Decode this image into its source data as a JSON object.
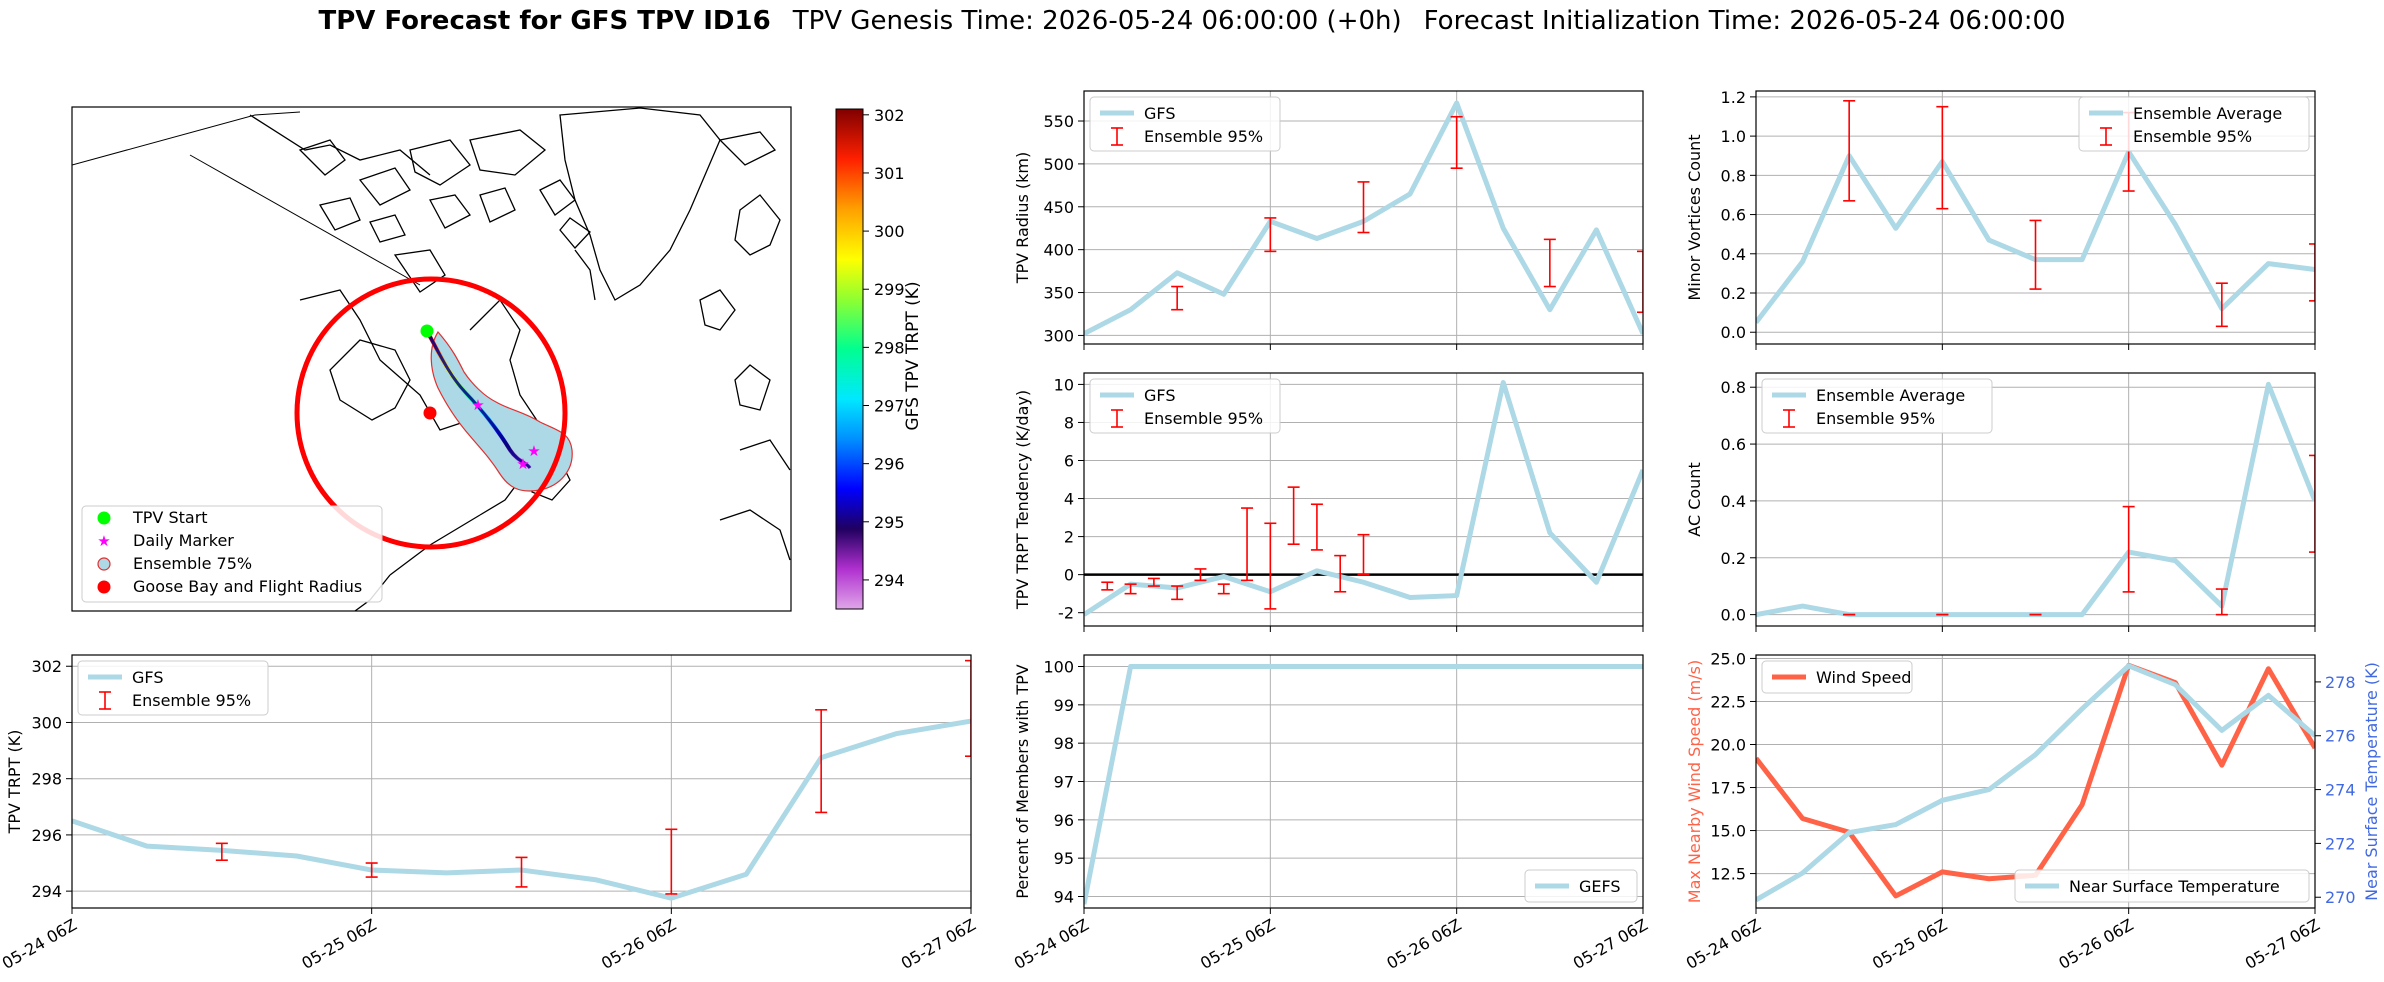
{
  "header": {
    "title_bold": "TPV Forecast for GFS TPV ID16",
    "genesis": "TPV Genesis Time: 2026-05-24 06:00:00 (+0h)",
    "init": "Forecast Initialization Time: 2026-05-24 06:00:00"
  },
  "colors": {
    "line": "#add8e6",
    "errorbar": "#ff0000",
    "wind": "#ff6347",
    "temp_axis": "#4169e1",
    "grid": "#b0b0b0"
  },
  "time_ticks": [
    "05-24 06Z",
    "05-25 06Z",
    "05-26 06Z",
    "05-27 06Z"
  ],
  "map": {
    "legend": [
      "TPV Start",
      "Daily Marker",
      "Ensemble 75%",
      "Goose Bay and Flight Radius"
    ],
    "colorbar": {
      "label": "GFS TPV TRPT (K)",
      "range": [
        293.5,
        302.1
      ],
      "ticks": [
        "294",
        "295",
        "296",
        "297",
        "298",
        "299",
        "300",
        "301",
        "302"
      ],
      "colormap": "gist_ncar_r"
    },
    "track_color": "#00008b",
    "start_color": "#00ff00",
    "goose_bay_color": "#ff0000",
    "daily_marker_color": "#ff00ff"
  },
  "chart_data": [
    {
      "id": "trpt",
      "type": "line",
      "x": [
        0,
        6,
        12,
        18,
        24,
        30,
        36,
        42,
        48,
        54,
        60,
        66,
        72
      ],
      "series": [
        {
          "name": "GFS",
          "values": [
            296.5,
            295.6,
            295.45,
            295.25,
            294.75,
            294.65,
            294.75,
            294.4,
            293.75,
            294.6,
            298.75,
            299.6,
            300.05
          ]
        }
      ],
      "errorbars": {
        "name": "Ensemble 95%",
        "x": [
          12,
          24,
          36,
          48,
          60,
          72
        ],
        "low": [
          295.1,
          294.5,
          294.15,
          293.9,
          296.8,
          298.8
        ],
        "high": [
          295.7,
          295.0,
          295.2,
          296.2,
          300.45,
          302.2
        ]
      },
      "ylabel": "TPV TRPT (K)",
      "ylim": [
        293.4,
        302.4
      ],
      "yticks": [
        294,
        296,
        298,
        300,
        302
      ],
      "legend": "upper left",
      "grid": true
    },
    {
      "id": "radius",
      "type": "line",
      "x": [
        0,
        6,
        12,
        18,
        24,
        30,
        36,
        42,
        48,
        54,
        60,
        66,
        72
      ],
      "series": [
        {
          "name": "GFS",
          "values": [
            302,
            330,
            373,
            348,
            433,
            413,
            433,
            465,
            571,
            425,
            330,
            423,
            302
          ]
        }
      ],
      "errorbars": {
        "name": "Ensemble 95%",
        "x": [
          12,
          24,
          36,
          48,
          60,
          72
        ],
        "low": [
          330,
          398,
          420,
          495,
          357,
          327
        ],
        "high": [
          357,
          437,
          479,
          555,
          412,
          398
        ]
      },
      "ylabel": "TPV Radius (km)",
      "ylim": [
        290,
        585
      ],
      "yticks": [
        300,
        350,
        400,
        450,
        500,
        550
      ],
      "legend": "upper left",
      "grid": true
    },
    {
      "id": "minor",
      "type": "line",
      "x": [
        0,
        6,
        12,
        18,
        24,
        30,
        36,
        42,
        48,
        54,
        60,
        66,
        72
      ],
      "series": [
        {
          "name": "Ensemble Average",
          "values": [
            0.05,
            0.36,
            0.9,
            0.53,
            0.87,
            0.47,
            0.37,
            0.37,
            0.92,
            0.55,
            0.12,
            0.35,
            0.32
          ]
        }
      ],
      "errorbars": {
        "name": "Ensemble 95%",
        "x": [
          12,
          24,
          36,
          48,
          60,
          72
        ],
        "low": [
          0.67,
          0.63,
          0.22,
          0.72,
          0.03,
          0.16
        ],
        "high": [
          1.18,
          1.15,
          0.57,
          1.12,
          0.25,
          0.45
        ]
      },
      "ylabel": "Minor Vortices Count",
      "ylim": [
        -0.06,
        1.23
      ],
      "yticks": [
        0.0,
        0.2,
        0.4,
        0.6,
        0.8,
        1.0,
        1.2
      ],
      "legend": "upper right",
      "grid": true
    },
    {
      "id": "tendency",
      "type": "line",
      "x": [
        0,
        6,
        12,
        18,
        24,
        30,
        36,
        42,
        48,
        54,
        60,
        66,
        72
      ],
      "series": [
        {
          "name": "GFS",
          "values": [
            -2.1,
            -0.5,
            -0.7,
            -0.1,
            -0.9,
            0.2,
            -0.4,
            -1.2,
            -1.1,
            10.1,
            2.2,
            -0.4,
            5.5
          ]
        }
      ],
      "errorbars": {
        "name": "Ensemble 95%",
        "x": [
          3,
          6,
          9,
          12,
          15,
          18,
          21,
          24,
          27,
          30,
          33,
          36
        ],
        "low": [
          -0.8,
          -1.0,
          -0.6,
          -1.3,
          -0.3,
          -1.0,
          -0.3,
          -1.8,
          1.6,
          1.3,
          -0.9,
          0.0
        ],
        "high": [
          -0.4,
          -0.5,
          -0.2,
          -0.6,
          0.3,
          -0.5,
          3.5,
          2.7,
          4.6,
          3.7,
          1.0,
          2.1
        ]
      },
      "ylabel": "TPV TRPT Tendency (K/day)",
      "ylim": [
        -2.7,
        10.6
      ],
      "yticks": [
        -2,
        0,
        2,
        4,
        6,
        8,
        10
      ],
      "hline": 0,
      "legend": "upper left",
      "grid": true
    },
    {
      "id": "ac",
      "type": "line",
      "x": [
        0,
        6,
        12,
        18,
        24,
        30,
        36,
        42,
        48,
        54,
        60,
        66,
        72
      ],
      "series": [
        {
          "name": "Ensemble Average",
          "values": [
            0.0,
            0.03,
            0.0,
            0.0,
            0.0,
            0.0,
            0.0,
            0.0,
            0.22,
            0.19,
            0.03,
            0.81,
            0.4
          ]
        }
      ],
      "errorbars": {
        "name": "Ensemble 95%",
        "x": [
          12,
          24,
          36,
          48,
          60,
          72
        ],
        "low": [
          0.0,
          0.0,
          0.0,
          0.08,
          0.0,
          0.22
        ],
        "high": [
          0.0,
          0.0,
          0.0,
          0.38,
          0.09,
          0.56
        ]
      },
      "ylabel": "AC Count",
      "ylim": [
        -0.04,
        0.85
      ],
      "yticks": [
        0.0,
        0.2,
        0.4,
        0.6,
        0.8
      ],
      "legend": "upper left",
      "grid": true
    },
    {
      "id": "members",
      "type": "line",
      "x": [
        0,
        6,
        12,
        18,
        24,
        30,
        36,
        42,
        48,
        54,
        60,
        66,
        72
      ],
      "series": [
        {
          "name": "GEFS",
          "values": [
            93.8,
            100,
            100,
            100,
            100,
            100,
            100,
            100,
            100,
            100,
            100,
            100,
            100
          ]
        }
      ],
      "ylabel": "Percent of Members with TPV",
      "ylim": [
        93.7,
        100.3
      ],
      "yticks": [
        94,
        95,
        96,
        97,
        98,
        99,
        100
      ],
      "legend": "lower right",
      "grid": true
    },
    {
      "id": "wind_temp",
      "type": "line",
      "x": [
        0,
        6,
        12,
        18,
        24,
        30,
        36,
        42,
        48,
        54,
        60,
        66,
        72
      ],
      "series": [
        {
          "name": "Wind Speed",
          "axis": "left",
          "values": [
            19.2,
            15.7,
            14.9,
            11.2,
            12.6,
            12.2,
            12.4,
            16.5,
            24.6,
            23.6,
            18.8,
            24.4,
            19.8
          ]
        },
        {
          "name": "Near Surface Temperature",
          "axis": "right",
          "values": [
            269.9,
            270.9,
            272.4,
            272.7,
            273.6,
            274.0,
            275.3,
            277.0,
            278.6,
            277.9,
            276.2,
            277.5,
            276.0
          ]
        }
      ],
      "ylabel": "Max Nearby Wind Speed (m/s)",
      "ylabel_right": "Near Surface Temperature (K)",
      "ylim": [
        10.5,
        25.2
      ],
      "yticks": [
        12.5,
        15.0,
        17.5,
        20.0,
        22.5,
        25.0
      ],
      "ylim_right": [
        269.6,
        279.0
      ],
      "yticks_right": [
        270,
        272,
        274,
        276,
        278
      ],
      "legend": "upper left / lower right",
      "grid": true
    }
  ]
}
